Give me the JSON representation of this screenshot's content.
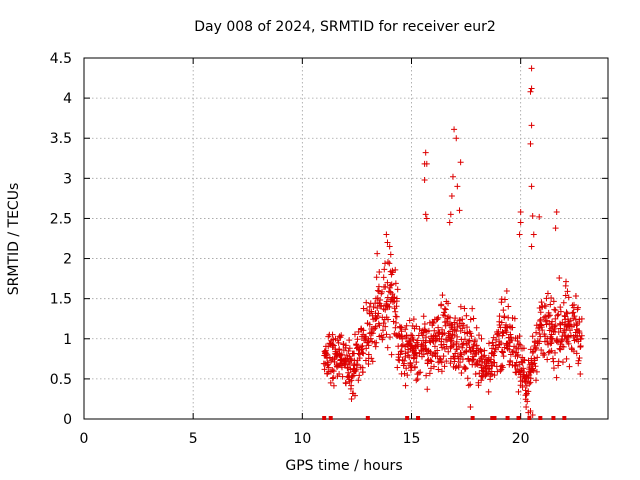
{
  "chart_data": {
    "type": "scatter",
    "title": "Day 008 of 2024, SRMTID for receiver eur2",
    "xlabel": "GPS time / hours",
    "ylabel": "SRMTID / TECUs",
    "xlim": [
      0,
      24
    ],
    "ylim": [
      0,
      4.5
    ],
    "grid": true,
    "marker": "+",
    "colors": {
      "points": "#dd0000",
      "axes": "#000000",
      "grid": "#a0a0a0"
    },
    "x_ticks": [
      0,
      5,
      10,
      15,
      20
    ],
    "x_tick_labels": [
      "0",
      "5",
      "10",
      "15",
      "20"
    ],
    "y_ticks": [
      0,
      0.5,
      1,
      1.5,
      2,
      2.5,
      3,
      3.5,
      4,
      4.5
    ],
    "y_tick_labels": [
      "0",
      "0.5",
      "1",
      "1.5",
      "2",
      "2.5",
      "3",
      "3.5",
      "4",
      "4.5"
    ],
    "x_start": 11.0,
    "x_end": 22.8,
    "activity_profile": [
      [
        11.0,
        0.75
      ],
      [
        11.8,
        0.75
      ],
      [
        12.3,
        0.6
      ],
      [
        12.8,
        1.0
      ],
      [
        13.5,
        1.35
      ],
      [
        14.1,
        1.45
      ],
      [
        14.6,
        0.85
      ],
      [
        15.2,
        0.9
      ],
      [
        15.8,
        0.85
      ],
      [
        16.6,
        1.1
      ],
      [
        17.4,
        0.95
      ],
      [
        18.0,
        0.8
      ],
      [
        18.6,
        0.6
      ],
      [
        19.2,
        1.1
      ],
      [
        19.7,
        0.9
      ],
      [
        20.3,
        0.45
      ],
      [
        20.9,
        1.2
      ],
      [
        21.5,
        1.05
      ],
      [
        22.1,
        1.2
      ],
      [
        22.8,
        1.0
      ]
    ],
    "notable_points": [
      {
        "x": 20.5,
        "y": 4.37
      },
      {
        "x": 20.5,
        "y": 4.12
      },
      {
        "x": 20.45,
        "y": 4.08
      },
      {
        "x": 20.5,
        "y": 3.66
      },
      {
        "x": 20.45,
        "y": 3.43
      },
      {
        "x": 20.5,
        "y": 2.9
      },
      {
        "x": 20.55,
        "y": 2.53
      },
      {
        "x": 20.6,
        "y": 2.3
      },
      {
        "x": 20.5,
        "y": 2.15
      },
      {
        "x": 16.95,
        "y": 3.61
      },
      {
        "x": 17.05,
        "y": 3.5
      },
      {
        "x": 17.25,
        "y": 3.2
      },
      {
        "x": 16.9,
        "y": 3.02
      },
      {
        "x": 17.1,
        "y": 2.9
      },
      {
        "x": 16.85,
        "y": 2.78
      },
      {
        "x": 16.8,
        "y": 2.55
      },
      {
        "x": 16.75,
        "y": 2.45
      },
      {
        "x": 17.2,
        "y": 2.6
      },
      {
        "x": 15.65,
        "y": 3.32
      },
      {
        "x": 15.6,
        "y": 3.18
      },
      {
        "x": 15.7,
        "y": 3.18
      },
      {
        "x": 15.6,
        "y": 2.98
      },
      {
        "x": 15.65,
        "y": 2.55
      },
      {
        "x": 15.7,
        "y": 2.5
      },
      {
        "x": 13.85,
        "y": 2.3
      },
      {
        "x": 13.9,
        "y": 2.2
      },
      {
        "x": 14.0,
        "y": 2.15
      },
      {
        "x": 14.05,
        "y": 2.05
      },
      {
        "x": 20.0,
        "y": 2.58
      },
      {
        "x": 20.0,
        "y": 2.45
      },
      {
        "x": 19.95,
        "y": 2.3
      },
      {
        "x": 21.65,
        "y": 2.58
      },
      {
        "x": 21.6,
        "y": 2.38
      },
      {
        "x": 20.85,
        "y": 2.52
      },
      {
        "x": 20.25,
        "y": 0.15
      },
      {
        "x": 20.35,
        "y": 0.08
      },
      {
        "x": 20.45,
        "y": 0.1
      },
      {
        "x": 20.3,
        "y": 0.22
      },
      {
        "x": 17.7,
        "y": 0.15
      },
      {
        "x": 20.55,
        "y": 0.05
      }
    ],
    "gap_markers_x": [
      11.0,
      11.3,
      13.0,
      14.8,
      15.3,
      17.8,
      18.7,
      18.8,
      19.4,
      19.9,
      20.4,
      20.9,
      21.5,
      22.0
    ]
  }
}
